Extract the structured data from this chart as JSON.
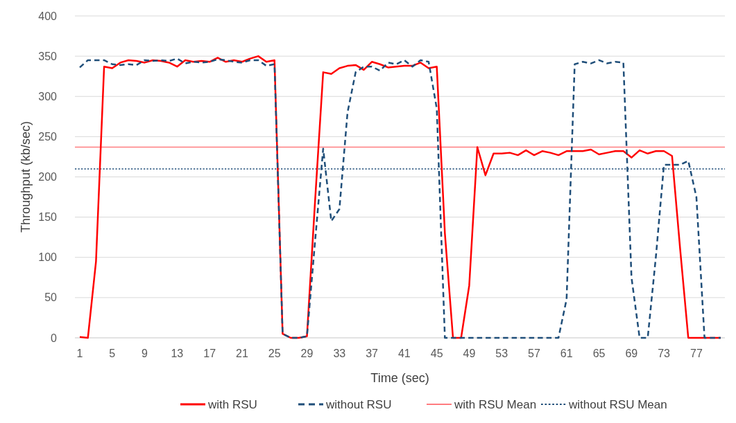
{
  "chart_data": {
    "type": "line",
    "xlabel": "Time (sec)",
    "ylabel": "Throughput (kb/sec)",
    "categories": [
      "1",
      null,
      null,
      null,
      "5",
      null,
      null,
      null,
      "9",
      null,
      null,
      null,
      "13",
      null,
      null,
      null,
      "17",
      null,
      null,
      null,
      "21",
      null,
      null,
      null,
      "25",
      null,
      null,
      null,
      "29",
      null,
      null,
      null,
      "33",
      null,
      null,
      null,
      "37",
      null,
      null,
      null,
      "41",
      null,
      null,
      null,
      "45",
      null,
      null,
      null,
      "49",
      null,
      null,
      null,
      "53",
      null,
      null,
      null,
      "57",
      null,
      null,
      null,
      "61",
      null,
      null,
      null,
      "65",
      null,
      null,
      null,
      "69",
      null,
      null,
      null,
      "73",
      null,
      null,
      null,
      "77",
      null,
      null,
      null
    ],
    "series": [
      {
        "name": "with RSU",
        "color": "#ff0000",
        "line_style": "solid",
        "values": [
          1,
          0,
          95,
          337,
          335,
          342,
          345,
          344,
          342,
          345,
          344,
          342,
          337,
          345,
          343,
          344,
          343,
          348,
          343,
          345,
          343,
          347,
          350,
          343,
          345,
          5,
          0,
          0,
          2,
          170,
          330,
          328,
          335,
          338,
          339,
          333,
          343,
          340,
          336,
          337,
          338,
          338,
          342,
          335,
          337,
          130,
          0,
          0,
          65,
          237,
          202,
          229,
          229,
          230,
          227,
          233,
          227,
          232,
          230,
          227,
          232,
          232,
          232,
          234,
          228,
          230,
          232,
          232,
          224,
          233,
          229,
          232,
          232,
          226,
          110,
          0,
          0,
          0,
          0,
          0
        ]
      },
      {
        "name": "without RSU",
        "color": "#1f4e79",
        "line_style": "dashed",
        "values": [
          336,
          345,
          345,
          345,
          340,
          339,
          340,
          339,
          345,
          344,
          345,
          344,
          347,
          341,
          343,
          342,
          343,
          346,
          345,
          343,
          342,
          345,
          345,
          338,
          340,
          5,
          0,
          0,
          2,
          120,
          235,
          145,
          160,
          280,
          330,
          337,
          337,
          332,
          342,
          340,
          345,
          337,
          345,
          343,
          285,
          0,
          0,
          0,
          0,
          0,
          0,
          0,
          0,
          0,
          0,
          0,
          0,
          0,
          0,
          0,
          48,
          340,
          343,
          341,
          345,
          341,
          343,
          342,
          75,
          0,
          0,
          100,
          215,
          215,
          215,
          220,
          175,
          0,
          0,
          0
        ]
      }
    ],
    "ref_lines": [
      {
        "axis": "y",
        "value": 237,
        "label": "with RSU Mean",
        "color": "#ff7c80",
        "line_style": "solid"
      },
      {
        "axis": "y",
        "value": 210,
        "label": "without RSU Mean",
        "color": "#1f4e79",
        "line_style": "dotted"
      }
    ],
    "ylim": [
      0,
      400
    ],
    "yticks": [
      0,
      50,
      100,
      150,
      200,
      250,
      300,
      350,
      400
    ],
    "grid": "y",
    "legend": "bottom"
  }
}
